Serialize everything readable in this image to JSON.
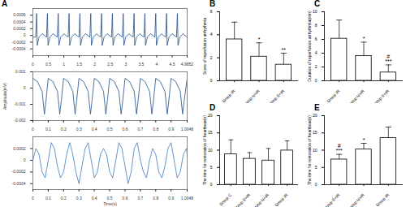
{
  "chart_data": [
    {
      "type": "line",
      "title": "A",
      "x": [
        0,
        0.09,
        0.12,
        0.14,
        0.2,
        0.3,
        0.44,
        0.47,
        0.49,
        0.55,
        0.65,
        0.79,
        0.82,
        0.84,
        0.9,
        1.0,
        1.14,
        1.17,
        1.19,
        1.25,
        1.35,
        1.49,
        1.52,
        1.54,
        1.6,
        1.7,
        1.84,
        1.87,
        1.89,
        1.95,
        2.05,
        2.19,
        2.22,
        2.24,
        2.3,
        2.4,
        2.54,
        2.57,
        2.59,
        2.65,
        2.75,
        2.89,
        2.92,
        2.94,
        3.0,
        3.1,
        3.24,
        3.27,
        3.29,
        3.35,
        3.45,
        3.59,
        3.62,
        3.64,
        3.7,
        3.8,
        3.94,
        3.97,
        3.99,
        4.05,
        4.15,
        4.29,
        4.32,
        4.34,
        4.4,
        4.5,
        4.64,
        4.67,
        4.69,
        4.75,
        4.85,
        4.9852
      ],
      "series": [
        {
          "color": "#1f4e8c",
          "values": [
            -5e-05,
            -5e-05,
            0.00065,
            -0.0003,
            -5e-05,
            5e-05,
            -5e-05,
            0.00065,
            -0.0003,
            -5e-05,
            5e-05,
            -5e-05,
            0.00065,
            -0.0003,
            -5e-05,
            5e-05,
            -5e-05,
            0.00065,
            -0.0003,
            -5e-05,
            5e-05,
            -5e-05,
            0.00065,
            -0.0003,
            -5e-05,
            5e-05,
            -5e-05,
            0.00065,
            -0.0003,
            -5e-05,
            5e-05,
            -5e-05,
            0.00065,
            -0.0003,
            -5e-05,
            5e-05,
            -5e-05,
            0.00065,
            -0.0003,
            -5e-05,
            5e-05,
            -5e-05,
            0.00065,
            -0.0003,
            -5e-05,
            5e-05,
            -5e-05,
            0.00065,
            -0.0003,
            -5e-05,
            5e-05,
            -5e-05,
            0.00065,
            -0.0003,
            -5e-05,
            5e-05,
            -5e-05,
            0.00065,
            -0.0003,
            -5e-05,
            5e-05,
            -5e-05,
            0.00065,
            -0.0003,
            -5e-05,
            5e-05,
            -5e-05,
            0.00065,
            -0.0003,
            -5e-05,
            5e-05,
            -5e-05
          ]
        }
      ],
      "xlim": [
        0,
        4.9852
      ],
      "xticks": [
        0,
        0.5,
        1,
        1.5,
        2,
        2.5,
        3,
        3.5,
        4,
        4.5,
        4.9852
      ],
      "ylim": [
        -0.0006,
        0.0008
      ],
      "yticks": [
        -0.0004,
        -0.0002,
        0,
        0.0002,
        0.0004,
        0.0006
      ]
    },
    {
      "type": "line",
      "y_label": "Amplitude(mV)",
      "x": [
        0,
        0.03,
        0.06,
        0.075,
        0.085,
        0.1,
        0.13,
        0.16,
        0.175,
        0.185,
        0.2,
        0.23,
        0.26,
        0.275,
        0.285,
        0.3,
        0.33,
        0.36,
        0.375,
        0.385,
        0.4,
        0.43,
        0.46,
        0.475,
        0.485,
        0.5,
        0.53,
        0.56,
        0.575,
        0.585,
        0.6,
        0.63,
        0.66,
        0.675,
        0.685,
        0.7,
        0.73,
        0.76,
        0.775,
        0.785,
        0.8,
        0.83,
        0.86,
        0.875,
        0.885,
        0.9,
        0.93,
        0.96,
        0.975,
        0.985,
        1.0048
      ],
      "series": [
        {
          "color": "#1f4e8c",
          "values": [
            0.0006,
            0.0004,
            -0.0002,
            -0.0016,
            -0.0008,
            0.0006,
            0.0004,
            -0.0002,
            -0.0016,
            -0.0008,
            0.0006,
            0.0004,
            -0.0002,
            -0.0016,
            -0.0008,
            0.0006,
            0.0004,
            -0.0002,
            -0.0016,
            -0.0008,
            0.0006,
            0.0004,
            -0.0002,
            -0.0016,
            -0.0008,
            0.0006,
            0.0004,
            -0.0002,
            -0.0016,
            -0.0008,
            0.0006,
            0.0004,
            -0.0002,
            -0.0016,
            -0.0008,
            0.0006,
            0.0004,
            -0.0002,
            -0.0016,
            -0.0008,
            0.0006,
            0.0004,
            -0.0002,
            -0.0016,
            -0.0008,
            0.0006,
            0.0004,
            -0.0002,
            -0.0016,
            -0.0008,
            0.0006
          ]
        }
      ],
      "xlim": [
        0,
        1.0048
      ],
      "xticks": [
        0,
        0.1,
        0.2,
        0.3,
        0.4,
        0.5,
        0.6,
        0.7,
        0.8,
        0.9,
        1.0048
      ],
      "ylim": [
        -0.002,
        0.001
      ],
      "yticks": [
        -0.002,
        -0.001,
        0,
        0.001
      ]
    },
    {
      "type": "line",
      "x_label": "Time(s)",
      "x": [
        0,
        0.02,
        0.04,
        0.06,
        0.08,
        0.1,
        0.12,
        0.14,
        0.16,
        0.18,
        0.2,
        0.22,
        0.24,
        0.26,
        0.28,
        0.3,
        0.32,
        0.34,
        0.36,
        0.38,
        0.4,
        0.42,
        0.44,
        0.46,
        0.48,
        0.5,
        0.52,
        0.54,
        0.56,
        0.58,
        0.6,
        0.62,
        0.64,
        0.66,
        0.68,
        0.7,
        0.72,
        0.74,
        0.76,
        0.78,
        0.8,
        0.82,
        0.84,
        0.86,
        0.88,
        0.9,
        0.92,
        0.94,
        0.96,
        0.98,
        1.0,
        1.0048
      ],
      "series": [
        {
          "color": "#3d7cc0",
          "values": [
            0,
            0.0002,
            0.0001,
            -0.0002,
            -0.0003,
            0,
            0.0003,
            0.0002,
            -0.0001,
            -0.0003,
            -0.0002,
            0.0001,
            0.0003,
            0.0001,
            -0.0002,
            -0.0004,
            -0.0001,
            0.0002,
            0.0003,
            0,
            -0.0003,
            -0.0002,
            0.0001,
            0.0002,
            0.0001,
            -0.0002,
            -0.0003,
            0,
            0.0003,
            0.0002,
            -0.0001,
            -0.0004,
            -0.0002,
            0.0002,
            0.0003,
            0,
            -0.0002,
            -0.0003,
            0,
            0.0002,
            0.0001,
            -0.0002,
            -0.0003,
            -0.0001,
            0.0002,
            0.0003,
            0,
            -0.0003,
            -0.0002,
            0.0001,
            0.0002,
            0.0001
          ]
        }
      ],
      "xlim": [
        0,
        1.0048
      ],
      "xticks": [
        0,
        0.1,
        0.2,
        0.3,
        0.4,
        0.5,
        0.6,
        0.7,
        0.8,
        0.9,
        1.0048
      ],
      "ylim": [
        -0.0005,
        0.0004
      ],
      "yticks": [
        -0.0004,
        -0.0002,
        0,
        0.0002
      ]
    },
    {
      "type": "bar",
      "title": "B",
      "y_label": "Score of reperfusion arrhythmia",
      "categories": [
        "Group IR",
        "Group N+IR",
        "Group S+IR"
      ],
      "values": [
        3.6,
        2.1,
        1.4
      ],
      "errors": [
        1.5,
        1.2,
        1.0
      ],
      "color": "#ffffff",
      "ylim": [
        0,
        6
      ],
      "yticks": [
        0,
        2,
        4,
        6
      ],
      "annotations": [
        {
          "category": "Group N+IR",
          "text": "*"
        },
        {
          "category": "Group S+IR",
          "text": "**"
        }
      ]
    },
    {
      "type": "bar",
      "title": "C",
      "y_label": "Duration of reperfusion arrhythmia(min)",
      "categories": [
        "Group IR",
        "Group N+IR",
        "Group S+IR"
      ],
      "values": [
        6.1,
        3.6,
        1.2
      ],
      "errors": [
        2.7,
        2.0,
        1.1
      ],
      "color": "#ffffff",
      "ylim": [
        0,
        10
      ],
      "yticks": [
        0,
        2,
        4,
        6,
        8,
        10
      ],
      "annotations": [
        {
          "category": "Group N+IR",
          "text": "*"
        },
        {
          "category": "Group S+IR",
          "text": "#\n***"
        }
      ]
    },
    {
      "type": "bar",
      "title": "D",
      "y_label": "The time for restoration of heartbeat(s)",
      "categories": [
        "Group C",
        "Group S+IR",
        "Group N+IR",
        "Group IR"
      ],
      "values": [
        8.8,
        7.5,
        7.0,
        9.9
      ],
      "errors": [
        4.2,
        1.8,
        3.5,
        2.8
      ],
      "color": "#ffffff",
      "ylim": [
        0,
        20
      ],
      "yticks": [
        0,
        5,
        10,
        15,
        20
      ]
    },
    {
      "type": "bar",
      "title": "E",
      "y_label": "The time for restoration of heartbeat(s)",
      "categories": [
        "Group S+IR",
        "Group N+IR",
        "Group IR"
      ],
      "values": [
        7.3,
        10.2,
        13.5
      ],
      "errors": [
        1.5,
        1.8,
        3.2
      ],
      "color": "#ffffff",
      "ylim": [
        0,
        20
      ],
      "yticks": [
        0,
        5,
        10,
        15,
        20
      ],
      "annotations": [
        {
          "category": "Group S+IR",
          "text": "#\n***"
        },
        {
          "category": "Group N+IR",
          "text": "*"
        }
      ]
    }
  ]
}
